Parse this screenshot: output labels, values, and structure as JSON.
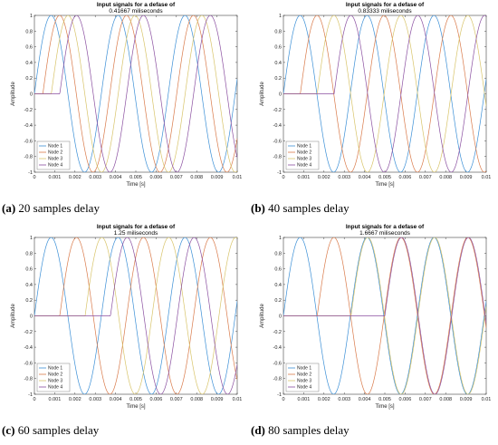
{
  "chart_data": [
    {
      "type": "line",
      "title": "Input signals for a defase of",
      "subtitle": "0.41667 miliseconds",
      "xlabel": "Time [s]",
      "ylabel": "Amplitude",
      "xlim": [
        0,
        0.01
      ],
      "ylim": [
        -1,
        1
      ],
      "xticks": [
        "0",
        "0.001",
        "0.002",
        "0.003",
        "0.004",
        "0.005",
        "0.006",
        "0.007",
        "0.008",
        "0.009",
        "0.01"
      ],
      "yticks": [
        "-1",
        "-0.8",
        "-0.6",
        "-0.4",
        "-0.2",
        "0",
        "0.2",
        "0.4",
        "0.6",
        "0.8",
        "1"
      ],
      "period": 0.0033,
      "delay": 0.00041667,
      "legend_position": "bottom-left",
      "series": [
        {
          "name": "Node 1",
          "color": "#3b8fd6",
          "shift": 0
        },
        {
          "name": "Node 2",
          "color": "#d97a4a",
          "shift": 1
        },
        {
          "name": "Node 3",
          "color": "#d8c46a",
          "shift": 2
        },
        {
          "name": "Node 4",
          "color": "#8a4fa0",
          "shift": 3
        }
      ],
      "caption_letter": "(a)",
      "caption_text": "20 samples delay"
    },
    {
      "type": "line",
      "title": "Input signals for a defase of",
      "subtitle": "0.83333 miliseconds",
      "xlabel": "Time [s]",
      "ylabel": "Amplitude",
      "xlim": [
        0,
        0.01
      ],
      "ylim": [
        -1,
        1
      ],
      "xticks": [
        "0",
        "0.001",
        "0.002",
        "0.003",
        "0.004",
        "0.005",
        "0.006",
        "0.007",
        "0.008",
        "0.009",
        "0.01"
      ],
      "yticks": [
        "-1",
        "-0.8",
        "-0.6",
        "-0.4",
        "-0.2",
        "0",
        "0.2",
        "0.4",
        "0.6",
        "0.8",
        "1"
      ],
      "period": 0.0033,
      "delay": 0.00083333,
      "legend_position": "bottom-left",
      "series": [
        {
          "name": "Node 1",
          "color": "#3b8fd6",
          "shift": 0
        },
        {
          "name": "Node 2",
          "color": "#d97a4a",
          "shift": 1
        },
        {
          "name": "Node 3",
          "color": "#d8c46a",
          "shift": 2
        },
        {
          "name": "Node 4",
          "color": "#8a4fa0",
          "shift": 3
        }
      ],
      "caption_letter": "(b)",
      "caption_text": "40 samples delay"
    },
    {
      "type": "line",
      "title": "Input signals for a defase of",
      "subtitle": "1.25 miliseconds",
      "xlabel": "Time [s]",
      "ylabel": "Amplitude",
      "xlim": [
        0,
        0.01
      ],
      "ylim": [
        -1,
        1
      ],
      "xticks": [
        "0",
        "0.001",
        "0.002",
        "0.003",
        "0.004",
        "0.005",
        "0.006",
        "0.007",
        "0.008",
        "0.009",
        "0.01"
      ],
      "yticks": [
        "-1",
        "-0.8",
        "-0.6",
        "-0.4",
        "-0.2",
        "0",
        "0.2",
        "0.4",
        "0.6",
        "0.8",
        "1"
      ],
      "period": 0.0033,
      "delay": 0.00125,
      "legend_position": "bottom-left",
      "series": [
        {
          "name": "Node 1",
          "color": "#3b8fd6",
          "shift": 0
        },
        {
          "name": "Node 2",
          "color": "#d97a4a",
          "shift": 1
        },
        {
          "name": "Node 3",
          "color": "#d8c46a",
          "shift": 2
        },
        {
          "name": "Node 4",
          "color": "#8a4fa0",
          "shift": 3
        }
      ],
      "caption_letter": "(c)",
      "caption_text": "60 samples delay"
    },
    {
      "type": "line",
      "title": "Input signals for a defase of",
      "subtitle": "1.6667 miliseconds",
      "xlabel": "Time [s]",
      "ylabel": "Amplitude",
      "xlim": [
        0,
        0.01
      ],
      "ylim": [
        -1,
        1
      ],
      "xticks": [
        "0",
        "0.001",
        "0.002",
        "0.003",
        "0.004",
        "0.005",
        "0.006",
        "0.007",
        "0.008",
        "0.009",
        "0.01"
      ],
      "yticks": [
        "-1",
        "-0.8",
        "-0.6",
        "-0.4",
        "-0.2",
        "0",
        "0.2",
        "0.4",
        "0.6",
        "0.8",
        "1"
      ],
      "period": 0.0033,
      "delay": 0.0016667,
      "legend_position": "bottom-left",
      "series": [
        {
          "name": "Node 1",
          "color": "#3b8fd6",
          "shift": 0
        },
        {
          "name": "Node 2",
          "color": "#d97a4a",
          "shift": 1
        },
        {
          "name": "Node 3",
          "color": "#d8c46a",
          "shift": 2
        },
        {
          "name": "Node 4",
          "color": "#8a4fa0",
          "shift": 3
        }
      ],
      "caption_letter": "(d)",
      "caption_text": "80 samples delay"
    }
  ]
}
